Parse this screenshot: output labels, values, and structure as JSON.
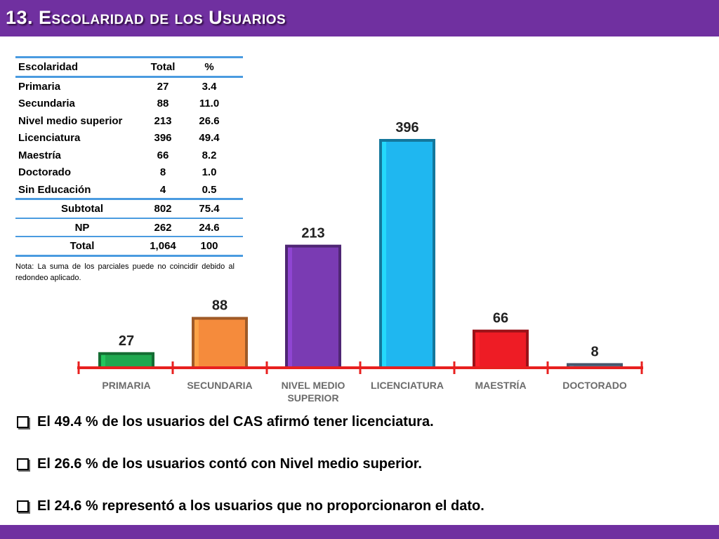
{
  "header": {
    "title": "13. Escolaridad de los Usuarios"
  },
  "table": {
    "columns": [
      "Escolaridad",
      "Total",
      "%"
    ],
    "rows": [
      [
        "Primaria",
        "27",
        "3.4"
      ],
      [
        "Secundaria",
        "88",
        "11.0"
      ],
      [
        "Nivel medio superior",
        "213",
        "26.6"
      ],
      [
        "Licenciatura",
        "396",
        "49.4"
      ],
      [
        "Maestría",
        "66",
        "8.2"
      ],
      [
        "Doctorado",
        "8",
        "1.0"
      ],
      [
        "Sin Educación",
        "4",
        "0.5"
      ]
    ],
    "subtotal": [
      "Subtotal",
      "802",
      "75.4"
    ],
    "np": [
      "NP",
      "262",
      "24.6"
    ],
    "total": [
      "Total",
      "1,064",
      "100"
    ],
    "note": "Nota: La suma de los parciales puede no coincidir debido al redondeo aplicado."
  },
  "chart_data": {
    "type": "bar",
    "categories": [
      "PRIMARIA",
      "SECUNDARIA",
      "NIVEL MEDIO SUPERIOR",
      "LICENCIATURA",
      "MAESTRÍA",
      "DOCTORADO"
    ],
    "category_lines": [
      [
        "PRIMARIA"
      ],
      [
        "SECUNDARIA"
      ],
      [
        "NIVEL MEDIO",
        "SUPERIOR"
      ],
      [
        "LICENCIATURA"
      ],
      [
        "MAESTRÍA"
      ],
      [
        "DOCTORADO"
      ]
    ],
    "values": [
      27,
      88,
      213,
      396,
      66,
      8
    ],
    "colors": [
      "#1fa84f",
      "#f58b3c",
      "#7a3bb3",
      "#1fb7f0",
      "#ee1c25",
      "#6c86a6"
    ],
    "axis_color": "#e8201f",
    "ylim": [
      0,
      396
    ],
    "title": "",
    "xlabel": "",
    "ylabel": ""
  },
  "bullets": [
    "El 49.4 % de los usuarios del CAS afirmó tener licenciatura.",
    "El 26.6 % de los usuarios contó con Nivel medio superior.",
    "El 24.6 % representó a los usuarios que no proporcionaron el dato."
  ]
}
